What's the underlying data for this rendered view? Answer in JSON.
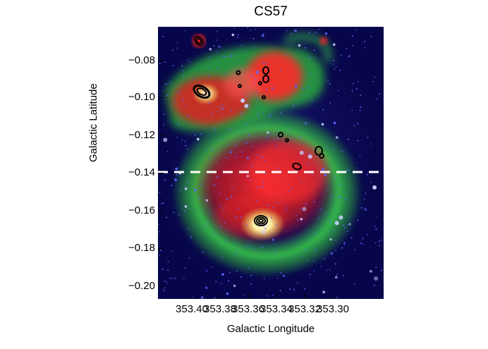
{
  "title": "CS57",
  "axes": {
    "xlabel": "Galactic Longitude",
    "ylabel": "Galactic Latitude",
    "xticks": [
      "353.40",
      "353.38",
      "353.36",
      "353.34",
      "353.32",
      "353.30"
    ],
    "yticks": [
      "−0.08",
      "−0.10",
      "−0.12",
      "−0.14",
      "−0.16",
      "−0.18",
      "−0.20"
    ]
  },
  "image": {
    "description_colors": {
      "background": "#06043a",
      "stars": "#6f7dff",
      "red_emission": "#ff2a2a",
      "green_shell": "#3cd94a",
      "bright_source": "#fff6a0"
    },
    "marker_line_latitude": "−0.14"
  },
  "icons": {
    "contour": "black-contour-ellipse"
  }
}
